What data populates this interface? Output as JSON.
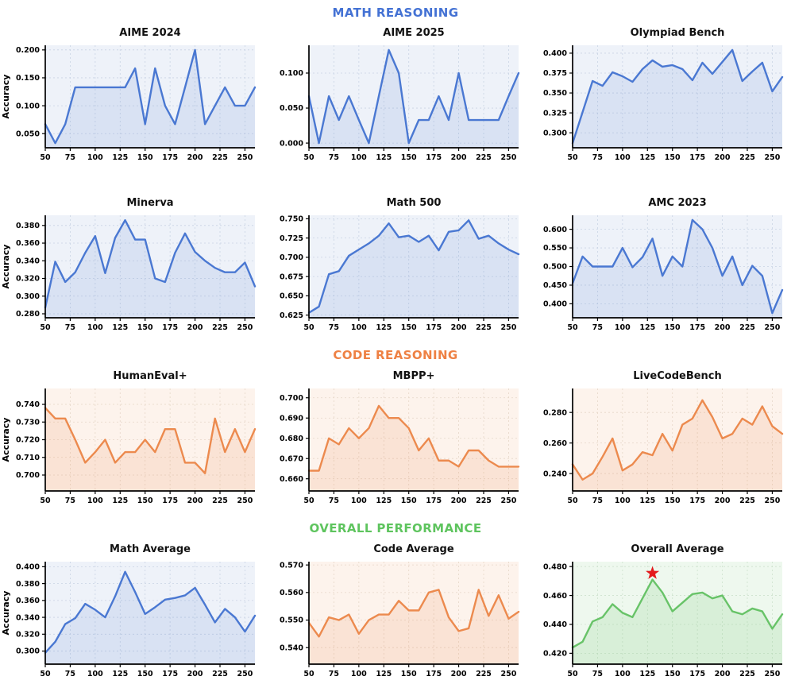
{
  "sections": [
    {
      "label": "MATH REASONING",
      "color": "#4472d4"
    },
    {
      "label": "CODE REASONING",
      "color": "#ee8144"
    },
    {
      "label": "OVERALL PERFORMANCE",
      "color": "#5ec45e"
    }
  ],
  "themes": {
    "math": {
      "line": "#4a78d2",
      "fill": "rgba(74,120,210,0.13)",
      "bg": "#eef2f9",
      "grid": "#c9d3e4"
    },
    "code": {
      "line": "#ec8a4e",
      "fill": "rgba(236,138,78,0.14)",
      "bg": "#fdf3ec",
      "grid": "#e6d6c8"
    },
    "overall": {
      "line": "#68c368",
      "fill": "rgba(104,195,104,0.16)",
      "bg": "#eef8ee",
      "grid": "#cde2cd"
    }
  },
  "axis": {
    "xlim": [
      50,
      260
    ],
    "xticks": [
      50,
      75,
      100,
      125,
      150,
      175,
      200,
      225,
      250
    ],
    "ylabel": "Accuracy"
  },
  "chart_data": [
    {
      "type": "line",
      "title": "AIME 2024",
      "theme": "math",
      "ylabel": "Accuracy",
      "x": [
        50,
        60,
        70,
        80,
        90,
        100,
        110,
        120,
        130,
        140,
        150,
        160,
        170,
        180,
        190,
        200,
        210,
        220,
        230,
        240,
        250,
        260
      ],
      "values": [
        0.067,
        0.033,
        0.067,
        0.133,
        0.133,
        0.133,
        0.133,
        0.133,
        0.133,
        0.167,
        0.067,
        0.167,
        0.1,
        0.067,
        0.133,
        0.2,
        0.067,
        0.1,
        0.133,
        0.1,
        0.1,
        0.133
      ],
      "yticks": [
        0.05,
        0.1,
        0.15,
        0.2
      ],
      "ylim": [
        0.0247,
        0.2083
      ]
    },
    {
      "type": "line",
      "title": "AIME 2025",
      "theme": "math",
      "ylabel": "",
      "x": [
        50,
        60,
        70,
        80,
        90,
        100,
        110,
        120,
        130,
        140,
        150,
        160,
        170,
        180,
        190,
        200,
        210,
        220,
        230,
        240,
        250,
        260
      ],
      "values": [
        0.067,
        0.0,
        0.067,
        0.033,
        0.067,
        0.033,
        0.0,
        0.067,
        0.133,
        0.1,
        0.0,
        0.033,
        0.033,
        0.067,
        0.033,
        0.1,
        0.033,
        0.033,
        0.033,
        0.033,
        0.067,
        0.1
      ],
      "yticks": [
        0.0,
        0.05,
        0.1
      ],
      "ylim": [
        -0.0067,
        0.1397
      ]
    },
    {
      "type": "line",
      "title": "Olympiad Bench",
      "theme": "math",
      "ylabel": "",
      "x": [
        50,
        60,
        70,
        80,
        90,
        100,
        110,
        120,
        130,
        140,
        150,
        160,
        170,
        180,
        190,
        200,
        210,
        220,
        230,
        240,
        250,
        260
      ],
      "values": [
        0.287,
        0.326,
        0.365,
        0.359,
        0.376,
        0.371,
        0.364,
        0.38,
        0.391,
        0.383,
        0.385,
        0.38,
        0.366,
        0.388,
        0.374,
        0.389,
        0.404,
        0.365,
        0.377,
        0.388,
        0.352,
        0.37
      ],
      "yticks": [
        0.3,
        0.325,
        0.35,
        0.375,
        0.4
      ],
      "ylim": [
        0.2812,
        0.4099
      ]
    },
    {
      "type": "line",
      "title": "Minerva",
      "theme": "math",
      "ylabel": "Accuracy",
      "x": [
        50,
        60,
        70,
        80,
        90,
        100,
        110,
        120,
        130,
        140,
        150,
        160,
        170,
        180,
        190,
        200,
        210,
        220,
        230,
        240,
        250,
        260
      ],
      "values": [
        0.287,
        0.339,
        0.316,
        0.327,
        0.349,
        0.368,
        0.326,
        0.366,
        0.386,
        0.364,
        0.364,
        0.32,
        0.316,
        0.349,
        0.371,
        0.35,
        0.34,
        0.332,
        0.327,
        0.327,
        0.338,
        0.311
      ],
      "yticks": [
        0.28,
        0.3,
        0.32,
        0.34,
        0.36,
        0.38
      ],
      "ylim": [
        0.2755,
        0.3915
      ]
    },
    {
      "type": "line",
      "title": "Math 500",
      "theme": "math",
      "ylabel": "",
      "x": [
        50,
        60,
        70,
        80,
        90,
        100,
        110,
        120,
        130,
        140,
        150,
        160,
        170,
        180,
        190,
        200,
        210,
        220,
        230,
        240,
        250,
        260
      ],
      "values": [
        0.628,
        0.636,
        0.678,
        0.682,
        0.702,
        0.71,
        0.718,
        0.728,
        0.744,
        0.726,
        0.728,
        0.72,
        0.728,
        0.709,
        0.733,
        0.735,
        0.748,
        0.724,
        0.728,
        0.718,
        0.71,
        0.704
      ],
      "yticks": [
        0.625,
        0.65,
        0.675,
        0.7,
        0.725,
        0.75
      ],
      "ylim": [
        0.6215,
        0.7545
      ]
    },
    {
      "type": "line",
      "title": "AMC 2023",
      "theme": "math",
      "ylabel": "",
      "x": [
        50,
        60,
        70,
        80,
        90,
        100,
        110,
        120,
        130,
        140,
        150,
        160,
        170,
        180,
        190,
        200,
        210,
        220,
        230,
        240,
        250,
        260
      ],
      "values": [
        0.455,
        0.527,
        0.5,
        0.5,
        0.5,
        0.55,
        0.498,
        0.525,
        0.575,
        0.475,
        0.527,
        0.5,
        0.625,
        0.6,
        0.55,
        0.475,
        0.527,
        0.45,
        0.502,
        0.475,
        0.375,
        0.437
      ],
      "yticks": [
        0.4,
        0.45,
        0.5,
        0.55,
        0.6
      ],
      "ylim": [
        0.3625,
        0.6375
      ]
    },
    {
      "type": "line",
      "title": "HumanEval+",
      "theme": "code",
      "ylabel": "Accuracy",
      "x": [
        50,
        60,
        70,
        80,
        90,
        100,
        110,
        120,
        130,
        140,
        150,
        160,
        170,
        180,
        190,
        200,
        210,
        220,
        230,
        240,
        250,
        260
      ],
      "values": [
        0.738,
        0.732,
        0.732,
        0.72,
        0.707,
        0.713,
        0.72,
        0.707,
        0.713,
        0.713,
        0.72,
        0.713,
        0.726,
        0.726,
        0.707,
        0.707,
        0.701,
        0.732,
        0.713,
        0.726,
        0.713,
        0.726
      ],
      "yticks": [
        0.7,
        0.71,
        0.72,
        0.73,
        0.74
      ],
      "ylim": [
        0.691,
        0.749
      ]
    },
    {
      "type": "line",
      "title": "MBPP+",
      "theme": "code",
      "ylabel": "",
      "x": [
        50,
        60,
        70,
        80,
        90,
        100,
        110,
        120,
        130,
        140,
        150,
        160,
        170,
        180,
        190,
        200,
        210,
        220,
        230,
        240,
        250,
        260
      ],
      "values": [
        0.664,
        0.664,
        0.68,
        0.677,
        0.685,
        0.68,
        0.685,
        0.696,
        0.69,
        0.69,
        0.685,
        0.674,
        0.68,
        0.669,
        0.669,
        0.666,
        0.674,
        0.674,
        0.669,
        0.666,
        0.666,
        0.666
      ],
      "yticks": [
        0.66,
        0.67,
        0.68,
        0.69,
        0.7
      ],
      "ylim": [
        0.654,
        0.7046
      ]
    },
    {
      "type": "line",
      "title": "LiveCodeBench",
      "theme": "code",
      "ylabel": "",
      "x": [
        50,
        60,
        70,
        80,
        90,
        100,
        110,
        120,
        130,
        140,
        150,
        160,
        170,
        180,
        190,
        200,
        210,
        220,
        230,
        240,
        250,
        260
      ],
      "values": [
        0.246,
        0.236,
        0.24,
        0.251,
        0.263,
        0.242,
        0.246,
        0.254,
        0.252,
        0.266,
        0.255,
        0.272,
        0.276,
        0.288,
        0.277,
        0.263,
        0.266,
        0.276,
        0.272,
        0.284,
        0.271,
        0.266
      ],
      "yticks": [
        0.24,
        0.26,
        0.28
      ],
      "ylim": [
        0.2286,
        0.2957
      ]
    },
    {
      "type": "line",
      "title": "Math Average",
      "theme": "math",
      "ylabel": "Accuracy",
      "x": [
        50,
        60,
        70,
        80,
        90,
        100,
        110,
        120,
        130,
        140,
        150,
        160,
        170,
        180,
        190,
        200,
        210,
        220,
        230,
        240,
        250,
        260
      ],
      "values": [
        0.298,
        0.311,
        0.332,
        0.339,
        0.356,
        0.349,
        0.34,
        0.365,
        0.394,
        0.37,
        0.344,
        0.352,
        0.361,
        0.363,
        0.366,
        0.375,
        0.355,
        0.334,
        0.35,
        0.34,
        0.323,
        0.342
      ],
      "yticks": [
        0.3,
        0.32,
        0.34,
        0.36,
        0.38,
        0.4
      ],
      "ylim": [
        0.2845,
        0.406
      ]
    },
    {
      "type": "line",
      "title": "Code Average",
      "theme": "code",
      "ylabel": "",
      "x": [
        50,
        60,
        70,
        80,
        90,
        100,
        110,
        120,
        130,
        140,
        150,
        160,
        170,
        180,
        190,
        200,
        210,
        220,
        230,
        240,
        250,
        260
      ],
      "values": [
        0.549,
        0.544,
        0.551,
        0.55,
        0.552,
        0.545,
        0.55,
        0.552,
        0.552,
        0.557,
        0.5535,
        0.5535,
        0.56,
        0.561,
        0.551,
        0.546,
        0.547,
        0.561,
        0.5515,
        0.559,
        0.5505,
        0.553
      ],
      "yticks": [
        0.54,
        0.55,
        0.56,
        0.57
      ],
      "ylim": [
        0.534,
        0.5712
      ]
    },
    {
      "type": "line",
      "title": "Overall Average",
      "theme": "overall",
      "ylabel": "",
      "x": [
        50,
        60,
        70,
        80,
        90,
        100,
        110,
        120,
        130,
        140,
        150,
        160,
        170,
        180,
        190,
        200,
        210,
        220,
        230,
        240,
        250,
        260
      ],
      "values": [
        0.424,
        0.428,
        0.442,
        0.445,
        0.454,
        0.448,
        0.445,
        0.458,
        0.471,
        0.462,
        0.449,
        0.455,
        0.461,
        0.462,
        0.458,
        0.46,
        0.449,
        0.447,
        0.451,
        0.449,
        0.437,
        0.447
      ],
      "yticks": [
        0.42,
        0.44,
        0.46,
        0.48
      ],
      "ylim": [
        0.4125,
        0.4834
      ],
      "marker": {
        "x": 130,
        "y": 0.471,
        "shape": "star",
        "color": "#e41a1c"
      }
    }
  ]
}
